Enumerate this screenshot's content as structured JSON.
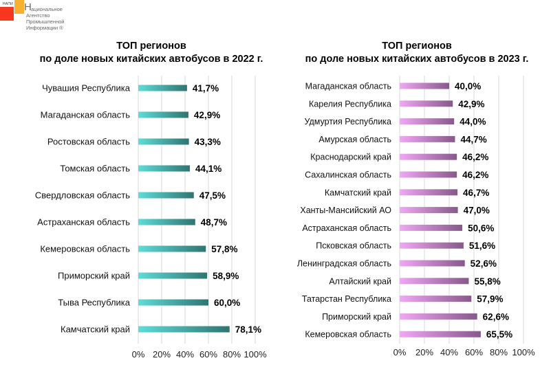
{
  "logo": {
    "abbr": "НАПИ",
    "first_letter": "Н",
    "lines": [
      "ациональное",
      "Агентство",
      "Промышленной",
      "Информации ®"
    ]
  },
  "chart_data": [
    {
      "type": "bar",
      "orientation": "horizontal",
      "title": "ТОП регионов",
      "subtitle": "по доле новых китайских автобусов в 2022 г.",
      "categories": [
        "Чувашия Республика",
        "Магаданская область",
        "Ростовская область",
        "Томская область",
        "Свердловская область",
        "Астраханская область",
        "Кемеровская область",
        "Приморский край",
        "Тыва Республика",
        "Камчатский край"
      ],
      "values": [
        41.7,
        42.9,
        43.3,
        44.1,
        47.5,
        48.7,
        57.8,
        58.9,
        60.0,
        78.1
      ],
      "value_labels": [
        "41,7%",
        "42,9%",
        "43,3%",
        "44,1%",
        "47,5%",
        "48,7%",
        "57,8%",
        "58,9%",
        "60,0%",
        "78,1%"
      ],
      "xlim": [
        0,
        100
      ],
      "xticks": [
        "0%",
        "20%",
        "40%",
        "60%",
        "80%",
        "100%"
      ],
      "grid": true,
      "bar_gradient": [
        "#5fdcd8",
        "#2f7571"
      ]
    },
    {
      "type": "bar",
      "orientation": "horizontal",
      "title": "ТОП регионов",
      "subtitle": "по доле новых китайских автобусов в 2023 г.",
      "categories": [
        "Магаданская область",
        "Карелия Республика",
        "Удмуртия Республика",
        "Амурская область",
        "Краснодарский край",
        "Сахалинская область",
        "Камчатский край",
        "Ханты-Мансийский АО",
        "Астраханская область",
        "Псковская область",
        "Ленинградская область",
        "Алтайский край",
        "Татарстан Республика",
        "Приморский край",
        "Кемеровская область"
      ],
      "values": [
        40.0,
        42.9,
        44.0,
        44.7,
        46.2,
        46.2,
        46.7,
        47.0,
        50.6,
        51.6,
        52.6,
        55.8,
        57.9,
        62.6,
        65.5
      ],
      "value_labels": [
        "40,0%",
        "42,9%",
        "44,0%",
        "44,7%",
        "46,2%",
        "46,2%",
        "46,7%",
        "47,0%",
        "50,6%",
        "51,6%",
        "52,6%",
        "55,8%",
        "57,9%",
        "62,6%",
        "65,5%"
      ],
      "xlim": [
        0,
        100
      ],
      "xticks": [
        "0%",
        "20%",
        "40%",
        "60%",
        "80%",
        "100%"
      ],
      "grid": true,
      "bar_gradient": [
        "#f0a8f5",
        "#87598a"
      ]
    }
  ]
}
